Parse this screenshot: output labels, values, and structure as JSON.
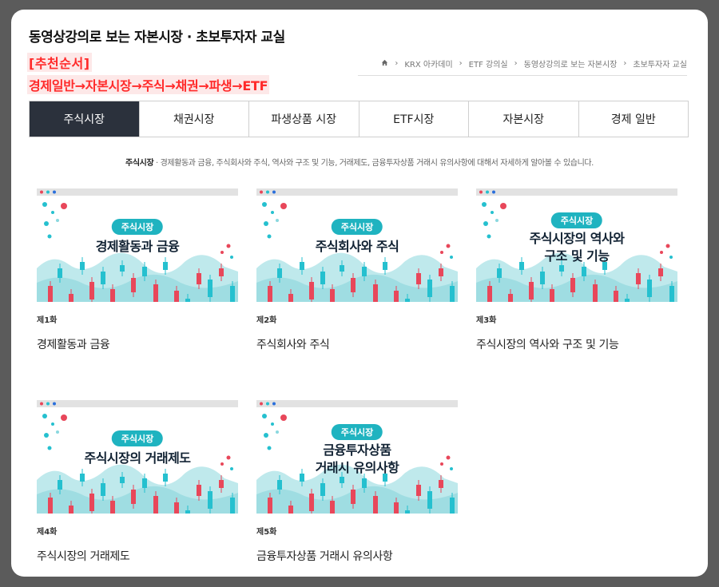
{
  "page": {
    "title": "동영상강의로 보는 자본시장 · 초보투자자 교실",
    "recommend_title": "[추천순서]",
    "recommend_order": "경제일반→자본시장→주식→채권→파생→ETF"
  },
  "breadcrumb": [
    "KRX 아카데미",
    "ETF 강의실",
    "동영상강의로 보는 자본시장",
    "초보투자자 교실"
  ],
  "tabs": [
    "주식시장",
    "채권시장",
    "파생상품 시장",
    "ETF시장",
    "자본시장",
    "경제 일반"
  ],
  "description": {
    "label": "주식시장",
    "text": "경제활동과 금융, 주식회사와 주식, 역사와 구조 및 기능, 거래제도, 금융투자상품 거래시 유의사항에 대해서 자세하게 알아볼 수 있습니다."
  },
  "videos": [
    {
      "episode": "제1화",
      "title": "경제활동과 금융",
      "badge": "주식시장",
      "thumb_lines": [
        "경제활동과 금융"
      ]
    },
    {
      "episode": "제2화",
      "title": "주식회사와 주식",
      "badge": "주식시장",
      "thumb_lines": [
        "주식회사와 주식"
      ]
    },
    {
      "episode": "제3화",
      "title": "주식시장의 역사와 구조 및 기능",
      "badge": "주식시장",
      "thumb_lines": [
        "주식시장의 역사와",
        "구조 및 기능"
      ]
    },
    {
      "episode": "제4화",
      "title": "주식시장의 거래제도",
      "badge": "주식시장",
      "thumb_lines": [
        "주식시장의 거래제도"
      ]
    },
    {
      "episode": "제5화",
      "title": "금융투자상품 거래시 유의사항",
      "badge": "주식시장",
      "thumb_lines": [
        "금융투자상품",
        "거래시 유의사항"
      ]
    }
  ],
  "colors": {
    "active_tab": "#2b313c",
    "accent_red": "#ff2a2a",
    "teal": "#1fb3c0",
    "candle_red": "#e8475a",
    "candle_teal": "#25c0cf"
  },
  "icons": {
    "home": "home-icon",
    "chevron": "chevron-right-icon"
  }
}
